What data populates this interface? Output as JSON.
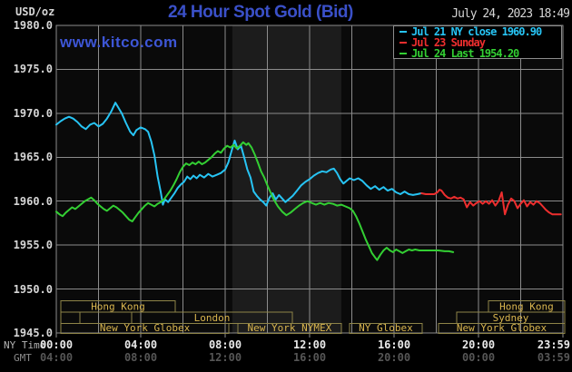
{
  "header": {
    "units_label": "USD/oz",
    "title": "24 Hour Spot Gold (Bid)",
    "timestamp": "July 24, 2023 18:49",
    "watermark": "www.kitco.com"
  },
  "legend": {
    "items": [
      {
        "label": "Jul 21 NY close 1960.90",
        "color": "#27c4f4"
      },
      {
        "label": "Jul 23 Sunday",
        "color": "#ee2e2e"
      },
      {
        "label": "Jul 24 Last 1954.20",
        "color": "#33cf33"
      }
    ]
  },
  "axes": {
    "y_ticks": [
      "1980.0",
      "1975.0",
      "1970.0",
      "1965.0",
      "1960.0",
      "1955.0",
      "1950.0",
      "1945.0"
    ],
    "x_rows": [
      {
        "label": "NY Time",
        "ticks": [
          "00:00",
          "04:00",
          "08:00",
          "12:00",
          "16:00",
          "20:00",
          "23:59"
        ]
      },
      {
        "label": "GMT",
        "ticks": [
          "04:00",
          "08:00",
          "12:00",
          "16:00",
          "20:00",
          "00:00",
          "03:59"
        ]
      }
    ]
  },
  "sessions": {
    "rows": [
      {
        "boxes": [
          {
            "label": "Hong Kong",
            "start_hour": 0.22,
            "end_hour": 5.63
          },
          {
            "label": "Hong Kong",
            "start_hour": 20.47,
            "end_hour": 24.09
          }
        ]
      },
      {
        "boxes": [
          {
            "label": "",
            "start_hour": 0.22,
            "end_hour": 1.12
          },
          {
            "label": "",
            "start_hour": 1.12,
            "end_hour": 3.57
          },
          {
            "label": "London",
            "start_hour": 3.57,
            "end_hour": 11.18
          },
          {
            "label": "Sydney",
            "start_hour": 18.97,
            "end_hour": 24.09
          }
        ]
      },
      {
        "boxes": [
          {
            "label": "New York Globex",
            "start_hour": 0.22,
            "end_hour": 8.17
          },
          {
            "label": "New York NYMEX",
            "start_hour": 8.6,
            "end_hour": 13.5
          },
          {
            "label": "NY Globex",
            "start_hour": 13.89,
            "end_hour": 17.33
          },
          {
            "label": "New York Globex",
            "start_hour": 18.11,
            "end_hour": 24.09
          }
        ]
      }
    ]
  },
  "colors": {
    "background": "#000000",
    "plot_background": "#0a0a0a",
    "highlight_band": "#1c1c1c",
    "grid": "#8c8c8c",
    "title_blue": "#3a50c8",
    "watermark_blue": "#3d56d6",
    "text_gray": "#d6d6d6",
    "gmt_gray": "#565656",
    "session_border": "#8e8448",
    "session_text": "#d9b54e",
    "series_cyan": "#27c4f4",
    "series_red": "#ee2e2e",
    "series_green": "#33cf33"
  },
  "chart_data": {
    "type": "line",
    "title": "24 Hour Spot Gold (Bid)",
    "ylabel": "USD/oz",
    "x_unit": "hours, NY time",
    "x_hours_range": [
      0,
      24
    ],
    "ylim": [
      1945,
      1980
    ],
    "y_tick_step": 5,
    "x_gridline_step_hours": 2,
    "x_tick_step_hours": 4,
    "highlight_band_hours": [
      8.34,
      13.5
    ],
    "legend_position": "top-right",
    "series": [
      {
        "name": "Jul 21 NY close",
        "close_value": 1960.9,
        "color": "#27c4f4",
        "points": [
          [
            0,
            1968.7
          ],
          [
            0.2,
            1969.1
          ],
          [
            0.4,
            1969.4
          ],
          [
            0.6,
            1969.6
          ],
          [
            0.8,
            1969.4
          ],
          [
            1.0,
            1969.0
          ],
          [
            1.2,
            1968.5
          ],
          [
            1.4,
            1968.2
          ],
          [
            1.6,
            1968.7
          ],
          [
            1.8,
            1968.9
          ],
          [
            2.0,
            1968.5
          ],
          [
            2.2,
            1968.8
          ],
          [
            2.4,
            1969.4
          ],
          [
            2.6,
            1970.2
          ],
          [
            2.8,
            1971.2
          ],
          [
            2.95,
            1970.6
          ],
          [
            3.1,
            1970.0
          ],
          [
            3.3,
            1968.9
          ],
          [
            3.5,
            1967.9
          ],
          [
            3.65,
            1967.5
          ],
          [
            3.8,
            1968.1
          ],
          [
            4.0,
            1968.4
          ],
          [
            4.2,
            1968.2
          ],
          [
            4.35,
            1967.9
          ],
          [
            4.5,
            1966.8
          ],
          [
            4.65,
            1965.2
          ],
          [
            4.8,
            1962.8
          ],
          [
            4.95,
            1961.0
          ],
          [
            5.05,
            1959.6
          ],
          [
            5.15,
            1960.2
          ],
          [
            5.3,
            1959.9
          ],
          [
            5.45,
            1960.4
          ],
          [
            5.6,
            1960.9
          ],
          [
            5.75,
            1961.5
          ],
          [
            5.9,
            1961.9
          ],
          [
            6.05,
            1962.2
          ],
          [
            6.2,
            1962.8
          ],
          [
            6.35,
            1962.5
          ],
          [
            6.5,
            1962.9
          ],
          [
            6.65,
            1962.6
          ],
          [
            6.8,
            1963.0
          ],
          [
            7.0,
            1962.7
          ],
          [
            7.2,
            1963.1
          ],
          [
            7.4,
            1962.8
          ],
          [
            7.6,
            1963.0
          ],
          [
            7.8,
            1963.2
          ],
          [
            8.0,
            1963.6
          ],
          [
            8.15,
            1964.4
          ],
          [
            8.3,
            1965.7
          ],
          [
            8.45,
            1966.9
          ],
          [
            8.6,
            1965.9
          ],
          [
            8.75,
            1966.3
          ],
          [
            8.9,
            1965.0
          ],
          [
            9.05,
            1963.6
          ],
          [
            9.2,
            1962.7
          ],
          [
            9.35,
            1961.1
          ],
          [
            9.5,
            1960.6
          ],
          [
            9.65,
            1960.2
          ],
          [
            9.8,
            1959.9
          ],
          [
            9.95,
            1959.5
          ],
          [
            10.1,
            1960.4
          ],
          [
            10.25,
            1960.9
          ],
          [
            10.4,
            1960.2
          ],
          [
            10.55,
            1960.7
          ],
          [
            10.7,
            1960.3
          ],
          [
            10.85,
            1959.9
          ],
          [
            11.0,
            1960.2
          ],
          [
            11.2,
            1960.6
          ],
          [
            11.4,
            1961.2
          ],
          [
            11.6,
            1961.8
          ],
          [
            11.8,
            1962.2
          ],
          [
            12.0,
            1962.5
          ],
          [
            12.2,
            1962.9
          ],
          [
            12.4,
            1963.2
          ],
          [
            12.6,
            1963.4
          ],
          [
            12.8,
            1963.3
          ],
          [
            13.0,
            1963.6
          ],
          [
            13.15,
            1963.7
          ],
          [
            13.3,
            1963.2
          ],
          [
            13.45,
            1962.5
          ],
          [
            13.6,
            1962.0
          ],
          [
            13.75,
            1962.3
          ],
          [
            13.9,
            1962.6
          ],
          [
            14.1,
            1962.4
          ],
          [
            14.3,
            1962.6
          ],
          [
            14.5,
            1962.3
          ],
          [
            14.7,
            1961.8
          ],
          [
            14.9,
            1961.4
          ],
          [
            15.1,
            1961.7
          ],
          [
            15.3,
            1961.3
          ],
          [
            15.5,
            1961.6
          ],
          [
            15.7,
            1961.2
          ],
          [
            15.9,
            1961.4
          ],
          [
            16.1,
            1961.0
          ],
          [
            16.3,
            1960.8
          ],
          [
            16.5,
            1961.1
          ],
          [
            16.7,
            1960.8
          ],
          [
            16.9,
            1960.7
          ],
          [
            17.1,
            1960.8
          ],
          [
            17.3,
            1960.9
          ]
        ]
      },
      {
        "name": "Jul 23 Sunday",
        "color": "#ee2e2e",
        "points": [
          [
            17.3,
            1960.9
          ],
          [
            17.5,
            1960.8
          ],
          [
            17.7,
            1960.8
          ],
          [
            17.9,
            1960.8
          ],
          [
            18.05,
            1961.0
          ],
          [
            18.15,
            1961.3
          ],
          [
            18.25,
            1961.2
          ],
          [
            18.4,
            1960.7
          ],
          [
            18.55,
            1960.4
          ],
          [
            18.7,
            1960.3
          ],
          [
            18.85,
            1960.5
          ],
          [
            19.0,
            1960.3
          ],
          [
            19.15,
            1960.4
          ],
          [
            19.3,
            1960.2
          ],
          [
            19.45,
            1959.3
          ],
          [
            19.6,
            1959.9
          ],
          [
            19.75,
            1959.5
          ],
          [
            19.9,
            1959.8
          ],
          [
            20.05,
            1960.0
          ],
          [
            20.2,
            1959.7
          ],
          [
            20.35,
            1960.0
          ],
          [
            20.5,
            1959.7
          ],
          [
            20.65,
            1960.1
          ],
          [
            20.8,
            1959.5
          ],
          [
            20.95,
            1960.0
          ],
          [
            21.1,
            1961.0
          ],
          [
            21.25,
            1958.5
          ],
          [
            21.4,
            1959.6
          ],
          [
            21.55,
            1960.3
          ],
          [
            21.7,
            1960.0
          ],
          [
            21.85,
            1959.2
          ],
          [
            22.0,
            1959.7
          ],
          [
            22.15,
            1960.1
          ],
          [
            22.3,
            1959.4
          ],
          [
            22.45,
            1959.9
          ],
          [
            22.6,
            1959.6
          ],
          [
            22.75,
            1960.0
          ],
          [
            22.9,
            1959.8
          ],
          [
            23.05,
            1959.4
          ],
          [
            23.2,
            1959.0
          ],
          [
            23.35,
            1958.7
          ],
          [
            23.5,
            1958.5
          ],
          [
            23.7,
            1958.5
          ],
          [
            23.9,
            1958.5
          ]
        ]
      },
      {
        "name": "Jul 24 Last",
        "last_value": 1954.2,
        "color": "#33cf33",
        "points": [
          [
            0,
            1958.8
          ],
          [
            0.15,
            1958.5
          ],
          [
            0.3,
            1958.3
          ],
          [
            0.45,
            1958.7
          ],
          [
            0.6,
            1959.0
          ],
          [
            0.75,
            1959.3
          ],
          [
            0.9,
            1959.1
          ],
          [
            1.05,
            1959.4
          ],
          [
            1.2,
            1959.7
          ],
          [
            1.35,
            1960.0
          ],
          [
            1.5,
            1960.2
          ],
          [
            1.65,
            1960.4
          ],
          [
            1.8,
            1960.1
          ],
          [
            1.95,
            1959.7
          ],
          [
            2.1,
            1959.4
          ],
          [
            2.25,
            1959.1
          ],
          [
            2.4,
            1958.9
          ],
          [
            2.55,
            1959.2
          ],
          [
            2.7,
            1959.5
          ],
          [
            2.85,
            1959.3
          ],
          [
            3.0,
            1959.0
          ],
          [
            3.15,
            1958.7
          ],
          [
            3.3,
            1958.3
          ],
          [
            3.45,
            1957.9
          ],
          [
            3.6,
            1957.7
          ],
          [
            3.75,
            1958.2
          ],
          [
            3.9,
            1958.7
          ],
          [
            4.05,
            1959.1
          ],
          [
            4.2,
            1959.5
          ],
          [
            4.35,
            1959.8
          ],
          [
            4.5,
            1959.6
          ],
          [
            4.65,
            1959.4
          ],
          [
            4.8,
            1959.7
          ],
          [
            4.95,
            1959.9
          ],
          [
            5.1,
            1960.2
          ],
          [
            5.25,
            1960.7
          ],
          [
            5.4,
            1961.2
          ],
          [
            5.55,
            1961.8
          ],
          [
            5.7,
            1962.5
          ],
          [
            5.85,
            1963.3
          ],
          [
            6.0,
            1963.9
          ],
          [
            6.15,
            1964.3
          ],
          [
            6.3,
            1964.1
          ],
          [
            6.45,
            1964.4
          ],
          [
            6.6,
            1964.2
          ],
          [
            6.75,
            1964.5
          ],
          [
            6.9,
            1964.2
          ],
          [
            7.05,
            1964.4
          ],
          [
            7.2,
            1964.7
          ],
          [
            7.35,
            1965.0
          ],
          [
            7.5,
            1965.4
          ],
          [
            7.65,
            1965.7
          ],
          [
            7.8,
            1965.5
          ],
          [
            7.95,
            1966.0
          ],
          [
            8.1,
            1966.3
          ],
          [
            8.25,
            1966.1
          ],
          [
            8.4,
            1966.4
          ],
          [
            8.55,
            1966.0
          ],
          [
            8.7,
            1966.3
          ],
          [
            8.85,
            1966.7
          ],
          [
            9.0,
            1966.4
          ],
          [
            9.1,
            1966.6
          ],
          [
            9.25,
            1966.1
          ],
          [
            9.4,
            1965.3
          ],
          [
            9.55,
            1964.4
          ],
          [
            9.7,
            1963.4
          ],
          [
            9.85,
            1962.7
          ],
          [
            10.0,
            1961.8
          ],
          [
            10.15,
            1961.0
          ],
          [
            10.3,
            1960.2
          ],
          [
            10.5,
            1959.4
          ],
          [
            10.7,
            1958.8
          ],
          [
            10.9,
            1958.4
          ],
          [
            11.1,
            1958.7
          ],
          [
            11.3,
            1959.1
          ],
          [
            11.5,
            1959.5
          ],
          [
            11.7,
            1959.8
          ],
          [
            11.9,
            1960.0
          ],
          [
            12.1,
            1959.8
          ],
          [
            12.3,
            1959.6
          ],
          [
            12.5,
            1959.8
          ],
          [
            12.7,
            1959.6
          ],
          [
            12.9,
            1959.8
          ],
          [
            13.1,
            1959.7
          ],
          [
            13.3,
            1959.5
          ],
          [
            13.5,
            1959.6
          ],
          [
            13.7,
            1959.4
          ],
          [
            13.9,
            1959.2
          ],
          [
            14.05,
            1958.9
          ],
          [
            14.2,
            1958.3
          ],
          [
            14.35,
            1957.5
          ],
          [
            14.5,
            1956.6
          ],
          [
            14.65,
            1955.7
          ],
          [
            14.8,
            1954.9
          ],
          [
            14.95,
            1954.1
          ],
          [
            15.1,
            1953.6
          ],
          [
            15.2,
            1953.3
          ],
          [
            15.35,
            1953.9
          ],
          [
            15.5,
            1954.4
          ],
          [
            15.65,
            1954.7
          ],
          [
            15.8,
            1954.4
          ],
          [
            15.95,
            1954.2
          ],
          [
            16.1,
            1954.5
          ],
          [
            16.25,
            1954.3
          ],
          [
            16.4,
            1954.1
          ],
          [
            16.55,
            1954.3
          ],
          [
            16.7,
            1954.5
          ],
          [
            16.85,
            1954.4
          ],
          [
            17.0,
            1954.5
          ],
          [
            17.2,
            1954.4
          ],
          [
            17.5,
            1954.4
          ],
          [
            17.8,
            1954.4
          ],
          [
            18.1,
            1954.4
          ],
          [
            18.4,
            1954.3
          ],
          [
            18.6,
            1954.3
          ],
          [
            18.8,
            1954.2
          ]
        ]
      }
    ]
  }
}
